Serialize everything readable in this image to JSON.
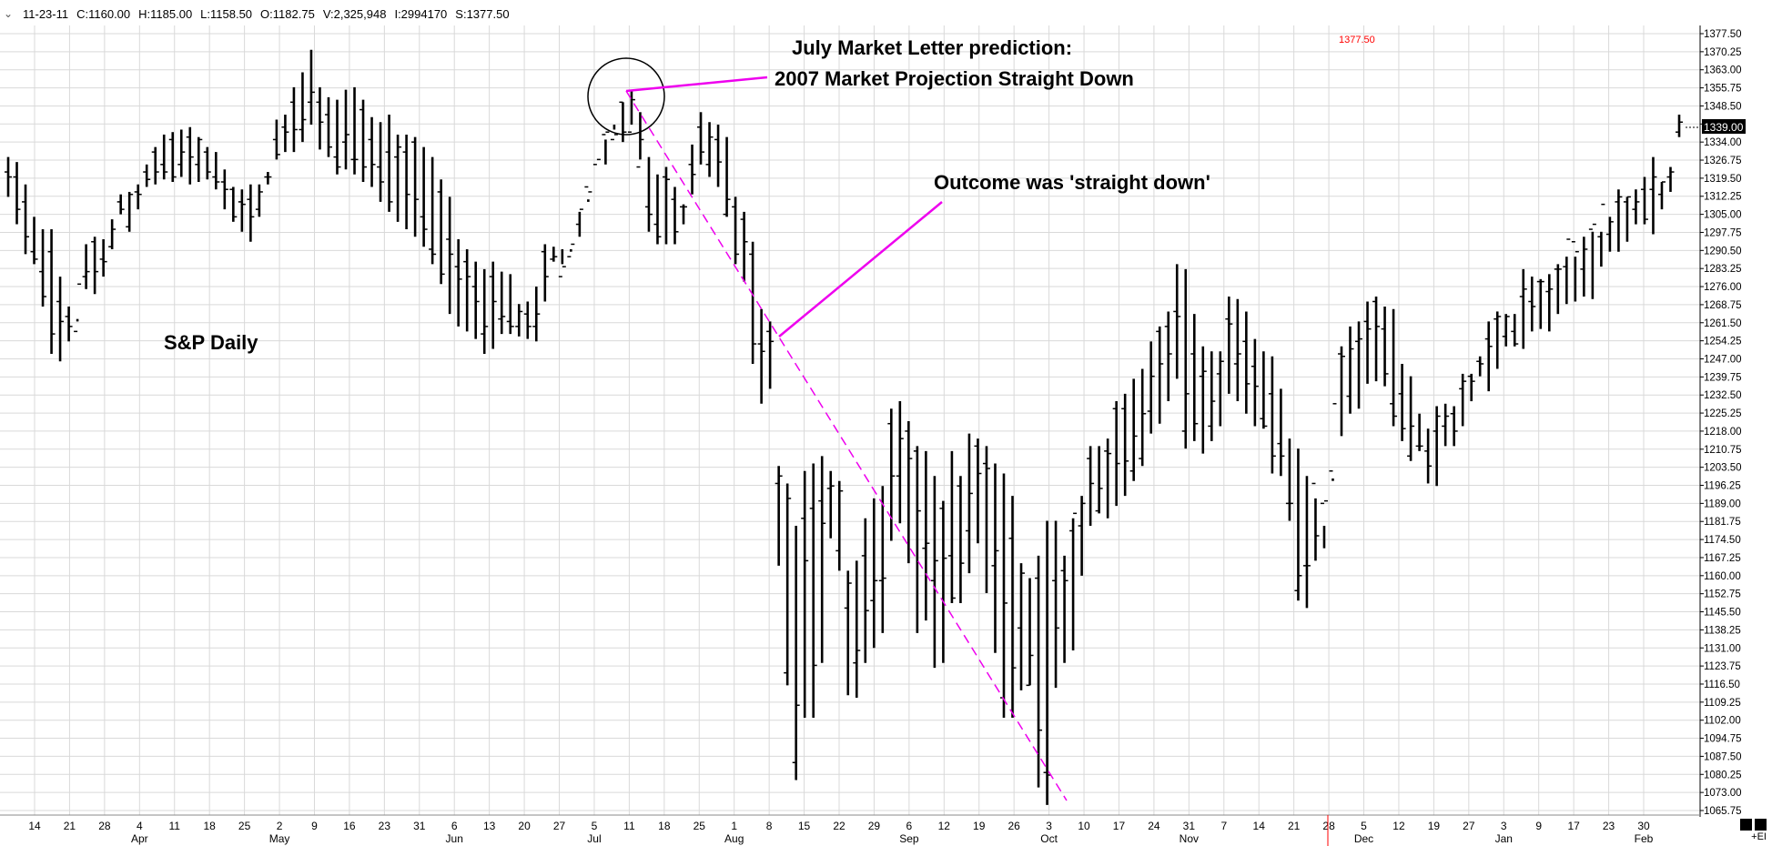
{
  "header": {
    "fields": [
      "11-23-11",
      "C:1160.00",
      "H:1185.00",
      "L:1158.50",
      "O:1182.75",
      "V:2,325,948",
      "I:2994170",
      "S:1377.50"
    ]
  },
  "annotations": {
    "prediction_line1": "July Market Letter prediction:",
    "prediction_line2": "2007 Market Projection Straight Down",
    "outcome": "Outcome was 'straight down'",
    "series_label": "S&P Daily",
    "top_price_tag": "1377.50",
    "last_price_tag": "1339.00"
  },
  "footer": {
    "expand_label": "+EI"
  },
  "colors": {
    "bars": "#000000",
    "annotation_lines": "#ee00ee",
    "grid": "#d9d9d9",
    "alert_line": "#ff0000"
  },
  "chart_data": {
    "type": "ohlc-bar",
    "title": "",
    "series_name": "S&P Daily",
    "ylim": [
      1065.75,
      1377.5
    ],
    "y_ticks": [
      1377.5,
      1370.25,
      1363.0,
      1355.75,
      1348.5,
      1341.25,
      1334.0,
      1326.75,
      1319.5,
      1312.25,
      1305.0,
      1297.75,
      1290.5,
      1283.25,
      1276.0,
      1268.75,
      1261.5,
      1254.25,
      1247.0,
      1239.75,
      1232.5,
      1225.25,
      1218.0,
      1210.75,
      1203.5,
      1196.25,
      1189.0,
      1181.75,
      1174.5,
      1167.25,
      1160.0,
      1152.75,
      1145.5,
      1138.25,
      1131.0,
      1123.75,
      1116.5,
      1109.25,
      1102.0,
      1094.75,
      1087.5,
      1080.25,
      1073.0,
      1065.75
    ],
    "x_ticks": [
      "14",
      "21",
      "28",
      "4",
      "11",
      "18",
      "25",
      "2",
      "9",
      "16",
      "23",
      "31",
      "6",
      "13",
      "20",
      "27",
      "5",
      "11",
      "18",
      "25",
      "1",
      "8",
      "15",
      "22",
      "29",
      "6",
      "12",
      "19",
      "26",
      "3",
      "10",
      "17",
      "24",
      "31",
      "7",
      "14",
      "21",
      "28",
      "5",
      "12",
      "19",
      "27",
      "3",
      "9",
      "17",
      "23",
      "30"
    ],
    "months": [
      "Apr",
      "May",
      "Jun",
      "Jul",
      "Aug",
      "Sep",
      "Oct",
      "Nov",
      "Dec",
      "Jan",
      "Feb"
    ],
    "highs": [
      1328,
      1326,
      1317,
      1304,
      1299,
      1299,
      1280,
      1268,
      1262,
      1293,
      1296,
      1295,
      1303,
      1313,
      1314,
      1317,
      1325,
      1332,
      1337,
      1338,
      1339,
      1340,
      1336,
      1332,
      1330,
      1323,
      1316,
      1315,
      1317,
      1317,
      1322,
      1343,
      1345,
      1356,
      1362,
      1371,
      1356,
      1352,
      1351,
      1355,
      1356,
      1351,
      1344,
      1342,
      1345,
      1337,
      1337,
      1336,
      1332,
      1328,
      1319,
      1312,
      1295,
      1291,
      1286,
      1283,
      1286,
      1282,
      1281,
      1269,
      1270,
      1276,
      1293,
      1292,
      1285,
      1290,
      1296,
      1310,
      1319,
      1325,
      1341,
      1350,
      1355,
      1346,
      1328,
      1321,
      1324,
      1316,
      1309,
      1333,
      1346,
      1342,
      1341,
      1336,
      1312,
      1306,
      1294,
      1267,
      1262,
      1204,
      1197,
      1180,
      1202,
      1205,
      1208,
      1202,
      1198,
      1162,
      1166,
      1183,
      1191,
      1196,
      1227,
      1230,
      1222,
      1212,
      1210,
      1200,
      1190,
      1210,
      1200,
      1217,
      1215,
      1212,
      1205,
      1201,
      1192,
      1165,
      1159,
      1168,
      1182,
      1182,
      1168,
      1183,
      1192,
      1212,
      1212,
      1215,
      1230,
      1233,
      1239,
      1243,
      1254,
      1260,
      1266,
      1285,
      1283,
      1265,
      1252,
      1250,
      1250,
      1272,
      1271,
      1266,
      1255,
      1250,
      1248,
      1235,
      1215,
      1211,
      1200,
      1191,
      1180,
      1199,
      1252,
      1260,
      1262,
      1270,
      1272,
      1268,
      1267,
      1245,
      1240,
      1225,
      1219,
      1228,
      1229,
      1228,
      1241,
      1241,
      1248,
      1262,
      1266,
      1265,
      1265,
      1283,
      1280,
      1279,
      1281,
      1285,
      1288,
      1288,
      1296,
      1298,
      1298,
      1304,
      1315,
      1312,
      1315,
      1320,
      1328,
      1318,
      1324,
      1345
    ],
    "lows": [
      1312,
      1301,
      1289,
      1285,
      1268,
      1249,
      1246,
      1254,
      1263,
      1275,
      1273,
      1280,
      1291,
      1305,
      1298,
      1307,
      1316,
      1317,
      1319,
      1318,
      1320,
      1317,
      1318,
      1319,
      1315,
      1307,
      1302,
      1298,
      1294,
      1304,
      1317,
      1327,
      1330,
      1330,
      1334,
      1341,
      1331,
      1328,
      1321,
      1323,
      1321,
      1318,
      1316,
      1310,
      1306,
      1302,
      1299,
      1296,
      1292,
      1285,
      1277,
      1265,
      1260,
      1258,
      1255,
      1249,
      1251,
      1257,
      1257,
      1256,
      1255,
      1254,
      1270,
      1286,
      1291,
      1291,
      1306,
      1311,
      1319,
      1335,
      1339,
      1334,
      1341,
      1327,
      1298,
      1293,
      1293,
      1293,
      1301,
      1313,
      1325,
      1320,
      1316,
      1304,
      1285,
      1278,
      1245,
      1229,
      1235,
      1164,
      1116,
      1078,
      1103,
      1103,
      1125,
      1175,
      1162,
      1112,
      1111,
      1125,
      1131,
      1137,
      1174,
      1181,
      1165,
      1137,
      1142,
      1123,
      1125,
      1149,
      1149,
      1161,
      1173,
      1153,
      1129,
      1103,
      1103,
      1114,
      1116,
      1075,
      1068,
      1115,
      1125,
      1130,
      1160,
      1180,
      1185,
      1183,
      1188,
      1192,
      1198,
      1204,
      1217,
      1221,
      1230,
      1239,
      1211,
      1214,
      1209,
      1214,
      1220,
      1233,
      1230,
      1225,
      1220,
      1219,
      1201,
      1200,
      1182,
      1150,
      1147,
      1166,
      1171,
      1198,
      1216,
      1225,
      1227,
      1237,
      1238,
      1236,
      1220,
      1214,
      1206,
      1210,
      1197,
      1196,
      1212,
      1212,
      1220,
      1230,
      1240,
      1234,
      1243,
      1252,
      1252,
      1251,
      1258,
      1259,
      1258,
      1265,
      1269,
      1270,
      1272,
      1271,
      1284,
      1290,
      1290,
      1294,
      1301,
      1301,
      1297,
      1307,
      1314,
      1336
    ],
    "opens": [
      1322,
      1320,
      1310,
      1290,
      1282,
      1290,
      1270,
      1264,
      1258,
      1280,
      1294,
      1287,
      1292,
      1310,
      1300,
      1314,
      1322,
      1330,
      1325,
      1335,
      1325,
      1336,
      1325,
      1330,
      1320,
      1318,
      1315,
      1310,
      1311,
      1307,
      1320,
      1335,
      1340,
      1350,
      1339,
      1350,
      1350,
      1345,
      1328,
      1334,
      1327,
      1347,
      1335,
      1324,
      1330,
      1328,
      1330,
      1334,
      1304,
      1291,
      1314,
      1295,
      1284,
      1286,
      1276,
      1257,
      1280,
      1263,
      1262,
      1260,
      1265,
      1260,
      1290,
      1287,
      1280,
      1288,
      1301,
      1316,
      1325,
      1337,
      1335,
      1350,
      1338,
      1324,
      1308,
      1301,
      1320,
      1311,
      1308,
      1325,
      1340,
      1325,
      1335,
      1305,
      1308,
      1303,
      1289,
      1253,
      1258,
      1197,
      1121,
      1085,
      1183,
      1187,
      1190,
      1195,
      1170,
      1147,
      1125,
      1168,
      1150,
      1158,
      1221,
      1200,
      1218,
      1210,
      1171,
      1158,
      1187,
      1168,
      1196,
      1178,
      1212,
      1205,
      1164,
      1111,
      1175,
      1139,
      1116,
      1159,
      1081,
      1158,
      1162,
      1178,
      1180,
      1207,
      1186,
      1210,
      1227,
      1227,
      1202,
      1207,
      1226,
      1258,
      1260,
      1266,
      1218,
      1249,
      1240,
      1220,
      1241,
      1263,
      1245,
      1254,
      1244,
      1223,
      1233,
      1213,
      1189,
      1154,
      1164,
      1197,
      1189,
      1202,
      1249,
      1232,
      1254,
      1262,
      1270,
      1259,
      1229,
      1233,
      1208,
      1212,
      1210,
      1218,
      1220,
      1225,
      1235,
      1240,
      1246,
      1255,
      1263,
      1256,
      1258,
      1272,
      1270,
      1278,
      1274,
      1283,
      1284,
      1294,
      1283,
      1299,
      1296,
      1297,
      1310,
      1310,
      1307,
      1315,
      1315,
      1313,
      1320,
      1338
    ],
    "closes": [
      1320,
      1307,
      1296,
      1287,
      1272,
      1257,
      1262,
      1260,
      1277,
      1282,
      1282,
      1286,
      1299,
      1307,
      1313,
      1313,
      1319,
      1322,
      1322,
      1320,
      1330,
      1328,
      1335,
      1322,
      1318,
      1315,
      1304,
      1309,
      1304,
      1314,
      1320,
      1329,
      1338,
      1339,
      1343,
      1354,
      1342,
      1332,
      1324,
      1337,
      1327,
      1324,
      1325,
      1318,
      1310,
      1332,
      1313,
      1311,
      1299,
      1289,
      1281,
      1289,
      1279,
      1280,
      1270,
      1260,
      1270,
      1264,
      1260,
      1266,
      1260,
      1265,
      1280,
      1288,
      1284,
      1293,
      1307,
      1314,
      1327,
      1338,
      1337,
      1338,
      1351,
      1335,
      1305,
      1296,
      1319,
      1298,
      1308,
      1321,
      1330,
      1336,
      1326,
      1311,
      1289,
      1294,
      1253,
      1250,
      1254,
      1200,
      1191,
      1108,
      1166,
      1124,
      1181,
      1196,
      1194,
      1157,
      1130,
      1146,
      1158,
      1159,
      1200,
      1215,
      1207,
      1186,
      1173,
      1166,
      1167,
      1151,
      1165,
      1193,
      1201,
      1203,
      1170,
      1149,
      1123,
      1161,
      1128,
      1098,
      1080,
      1139,
      1158,
      1185,
      1189,
      1197,
      1195,
      1209,
      1205,
      1206,
      1216,
      1225,
      1240,
      1245,
      1249,
      1264,
      1233,
      1221,
      1242,
      1230,
      1246,
      1261,
      1249,
      1237,
      1236,
      1220,
      1208,
      1208,
      1189,
      1160,
      1164,
      1176,
      1190,
      1229,
      1248,
      1251,
      1255,
      1259,
      1260,
      1241,
      1224,
      1219,
      1220,
      1212,
      1204,
      1224,
      1224,
      1218,
      1238,
      1238,
      1245,
      1252,
      1264,
      1264,
      1253,
      1275,
      1268,
      1278,
      1275,
      1283,
      1295,
      1290,
      1291,
      1301,
      1309,
      1302,
      1312,
      1312,
      1310,
      1303,
      1320,
      1318,
      1322,
      1342
    ]
  }
}
